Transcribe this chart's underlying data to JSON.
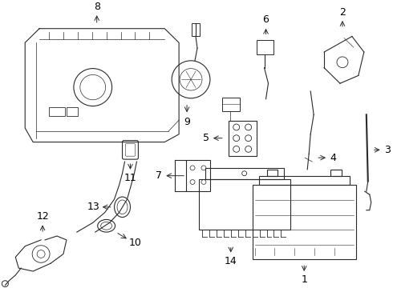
{
  "bg_color": "#ffffff",
  "line_color": "#2a2a2a",
  "label_color": "#000000",
  "fig_w": 4.9,
  "fig_h": 3.6,
  "dpi": 100,
  "xlim": [
    0,
    490
  ],
  "ylim": [
    0,
    360
  ]
}
